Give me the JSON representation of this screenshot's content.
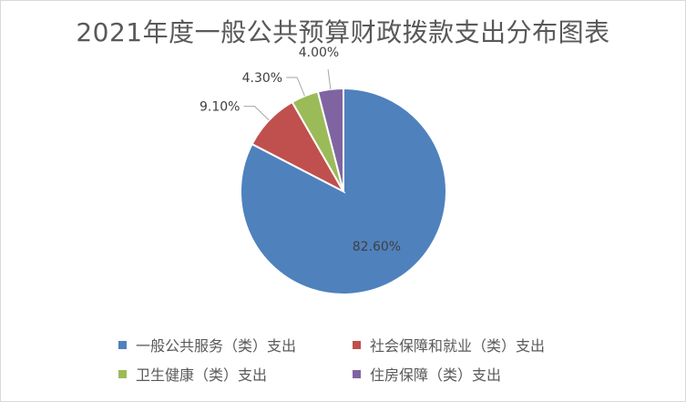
{
  "chart_data": {
    "type": "pie",
    "title": "2021年度一般公共预算财政拨款支出分布图表",
    "categories": [
      "一般公共服务（类）支出",
      "社会保障和就业（类）支出",
      "卫生健康（类）支出",
      "住房保障（类）支出"
    ],
    "values": [
      82.6,
      9.1,
      4.3,
      4.0
    ],
    "data_labels": [
      "82.60%",
      "9.10%",
      "4.30%",
      "4.00%"
    ],
    "colors": [
      "#4f81bd",
      "#c0504d",
      "#9bbb59",
      "#8064a2"
    ],
    "legend_position": "bottom",
    "start_angle": "12 o'clock, clockwise"
  }
}
